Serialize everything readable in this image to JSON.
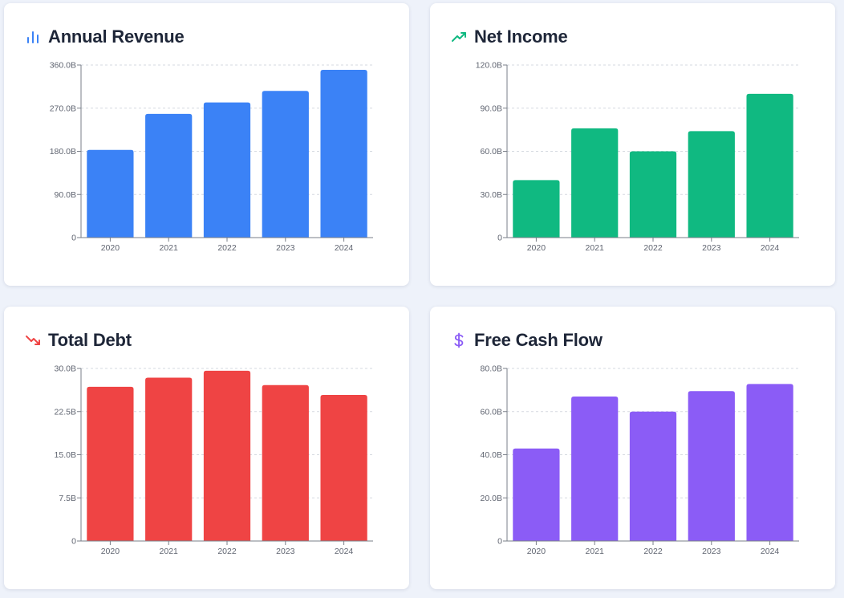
{
  "colors": {
    "revenue": "#3b82f6",
    "income": "#10b981",
    "debt": "#ef4444",
    "fcf": "#8b5cf6"
  },
  "cards": [
    {
      "title": "Annual Revenue",
      "icon": "bar-chart-icon"
    },
    {
      "title": "Net Income",
      "icon": "trending-up-icon"
    },
    {
      "title": "Total Debt",
      "icon": "trending-down-icon"
    },
    {
      "title": "Free Cash Flow",
      "icon": "dollar-sign-icon"
    }
  ],
  "chart_data": [
    {
      "type": "bar",
      "title": "Annual Revenue",
      "categories": [
        "2020",
        "2021",
        "2022",
        "2023",
        "2024"
      ],
      "values": [
        183.0,
        258.0,
        282.0,
        306.0,
        350.0
      ],
      "ylim": [
        0,
        360
      ],
      "yticks": [
        0,
        90,
        180,
        270,
        360
      ],
      "ytick_labels": [
        "0",
        "90.0B",
        "180.0B",
        "270.0B",
        "360.0B"
      ],
      "unit": "B",
      "color": "#3b82f6",
      "grid": true
    },
    {
      "type": "bar",
      "title": "Net Income",
      "categories": [
        "2020",
        "2021",
        "2022",
        "2023",
        "2024"
      ],
      "values": [
        40.0,
        76.0,
        60.0,
        74.0,
        100.0
      ],
      "ylim": [
        0,
        120
      ],
      "yticks": [
        0,
        30,
        60,
        90,
        120
      ],
      "ytick_labels": [
        "0",
        "30.0B",
        "60.0B",
        "90.0B",
        "120.0B"
      ],
      "unit": "B",
      "color": "#10b981",
      "grid": true
    },
    {
      "type": "bar",
      "title": "Total Debt",
      "categories": [
        "2020",
        "2021",
        "2022",
        "2023",
        "2024"
      ],
      "values": [
        26.8,
        28.4,
        29.6,
        27.1,
        25.4
      ],
      "ylim": [
        0,
        30
      ],
      "yticks": [
        0,
        7.5,
        15,
        22.5,
        30
      ],
      "ytick_labels": [
        "0",
        "7.5B",
        "15.0B",
        "22.5B",
        "30.0B"
      ],
      "unit": "B",
      "color": "#ef4444",
      "grid": true
    },
    {
      "type": "bar",
      "title": "Free Cash Flow",
      "categories": [
        "2020",
        "2021",
        "2022",
        "2023",
        "2024"
      ],
      "values": [
        42.9,
        67.0,
        60.0,
        69.5,
        72.8
      ],
      "ylim": [
        0,
        80
      ],
      "yticks": [
        0,
        20,
        40,
        60,
        80
      ],
      "ytick_labels": [
        "0",
        "20.0B",
        "40.0B",
        "60.0B",
        "80.0B"
      ],
      "unit": "B",
      "color": "#8b5cf6",
      "grid": true
    }
  ]
}
